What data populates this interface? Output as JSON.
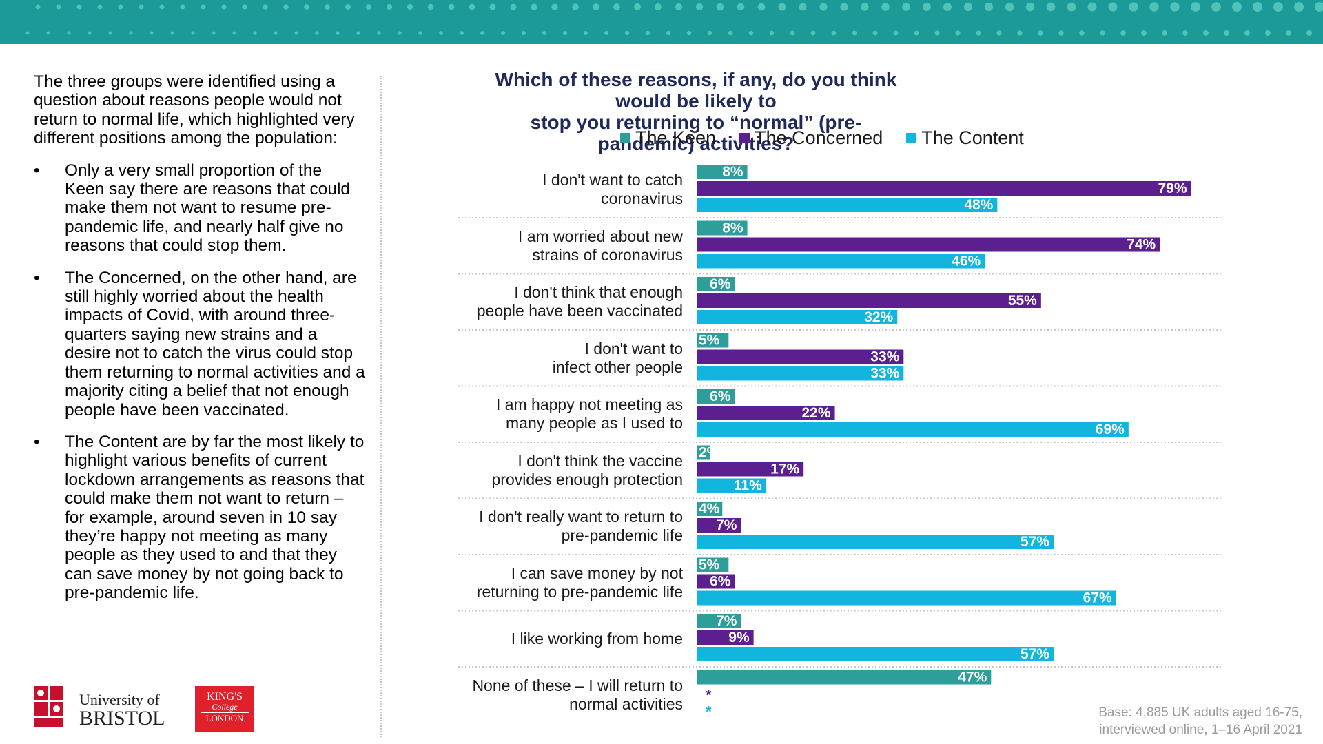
{
  "left_panel": {
    "intro": "The three groups were identified using a question about reasons people would not return to normal life, which highlighted very different positions among the population:",
    "bullet_marker": "•",
    "bullets": [
      "Only a very small proportion of the Keen say there are reasons that could make them not want to resume pre-pandemic life, and nearly half give no reasons that could stop them.",
      "The Concerned, on the other hand, are still highly worried about the health impacts of Covid, with around three-quarters saying new strains and a desire not to catch the virus could stop them returning to normal activities and a majority citing a belief that not enough people have been vaccinated.",
      "The Content are by far the most likely to highlight various benefits of current lockdown arrangements as reasons that could make them not want to return – for example, around seven in 10 say they’re happy not meeting as many people as they used to and that they can save money by not going back to pre-pandemic life."
    ]
  },
  "logos": {
    "bristol_line1": "University of",
    "bristol_line2": "BRISTOL",
    "kings_line1": "KING'S",
    "kings_line2": "College",
    "kings_line3": "LONDON"
  },
  "base_note": {
    "line1": "Base: 4,885 UK adults aged 16-75,",
    "line2": "interviewed online, 1–16 April 2021"
  },
  "chart_data": {
    "type": "bar",
    "orientation": "horizontal",
    "title_line1": "Which of these reasons, if any, do you think would be likely to",
    "title_line2": "stop you returning to “normal” (pre-pandemic) activities?",
    "legend_position": "top",
    "xlim": [
      0,
      80
    ],
    "grid": false,
    "categories": [
      [
        "I don't want to catch",
        "coronavirus"
      ],
      [
        "I am worried about new",
        "strains of coronavirus"
      ],
      [
        "I don't think that enough",
        "people have been vaccinated"
      ],
      [
        "I don't want to",
        "infect other people"
      ],
      [
        "I am happy not meeting as",
        "many people as I used to"
      ],
      [
        "I don't think the vaccine",
        "provides enough protection"
      ],
      [
        "I don't really want to return to",
        "pre-pandemic life"
      ],
      [
        "I can save money by not",
        "returning to pre-pandemic life"
      ],
      [
        "I like working from home"
      ],
      [
        "None of these – I will return to",
        "normal activities"
      ]
    ],
    "series": [
      {
        "name": "The Keen",
        "color": "#2e9e9a",
        "values": [
          8,
          8,
          6,
          5,
          6,
          2,
          4,
          5,
          7,
          47
        ],
        "labels": [
          "8%",
          "8%",
          "6%",
          "5%",
          "6%",
          "2%",
          "4%",
          "5%",
          "7%",
          "47%"
        ]
      },
      {
        "name": "The Concerned",
        "color": "#5b1f8f",
        "values": [
          79,
          74,
          55,
          33,
          22,
          17,
          7,
          6,
          9,
          null
        ],
        "labels": [
          "79%",
          "74%",
          "55%",
          "33%",
          "22%",
          "17%",
          "7%",
          "6%",
          "9%",
          "*"
        ]
      },
      {
        "name": "The Content",
        "color": "#12b5dd",
        "values": [
          48,
          46,
          32,
          33,
          69,
          11,
          57,
          67,
          57,
          null
        ],
        "labels": [
          "48%",
          "46%",
          "32%",
          "33%",
          "69%",
          "11%",
          "57%",
          "67%",
          "57%",
          "*"
        ]
      }
    ]
  }
}
